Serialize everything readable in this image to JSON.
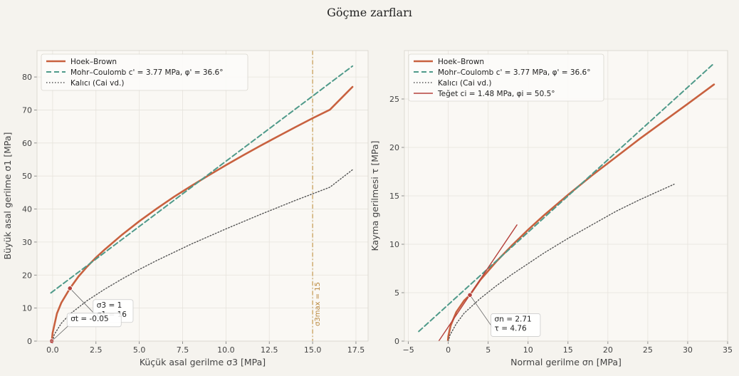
{
  "suptitle": "Göçme zarfları",
  "colors": {
    "hoek_brown": "#c8613f",
    "mohr_coulomb": "#4f9a8a",
    "residual": "#555555",
    "tangent": "#b5413c",
    "vline": "#c09040",
    "plot_bg": "#faf8f4",
    "grid": "#e6e3dc"
  },
  "chart_data": [
    {
      "type": "line",
      "xlabel": "Küçük asal gerilme σ3 [MPa]",
      "ylabel": "Büyük asal gerilme σ1 [MPa]",
      "xlim": [
        -0.9,
        18.2
      ],
      "ylim": [
        0,
        88
      ],
      "xticks": [
        0,
        2.5,
        5,
        7.5,
        10,
        12.5,
        15,
        17.5
      ],
      "xtick_labels": [
        "0.0",
        "2.5",
        "5.0",
        "7.5",
        "10.0",
        "12.5",
        "15.0",
        "17.5"
      ],
      "yticks": [
        0,
        10,
        20,
        30,
        40,
        50,
        60,
        70,
        80
      ],
      "ytick_labels": [
        "0",
        "10",
        "20",
        "30",
        "40",
        "50",
        "60",
        "70",
        "80"
      ],
      "grid": true,
      "legend_loc": "upper left",
      "legend": [
        "Hoek–Brown",
        "Mohr–Coulomb  c' = 3.77 MPa, φ' = 36.6°",
        "Kalıcı (Cai vd.)"
      ],
      "series": [
        {
          "name": "Hoek–Brown",
          "style": "solid",
          "color": "hoek_brown",
          "x": [
            -0.05,
            0,
            0.25,
            0.5,
            1,
            1.5,
            2,
            2.5,
            3,
            4,
            5,
            6,
            7,
            8,
            9,
            10,
            11,
            12,
            13,
            14,
            15,
            16,
            17.3
          ],
          "y": [
            0,
            2.5,
            8.4,
            11.6,
            16,
            19.6,
            22.6,
            25.3,
            27.7,
            32.2,
            36.3,
            40.1,
            43.7,
            47,
            50.2,
            53.3,
            56.3,
            59.2,
            62,
            64.8,
            67.5,
            70.1,
            77
          ]
        },
        {
          "name": "Mohr–Coulomb  c' = 3.77 MPa, φ' = 36.6°",
          "style": "dashed",
          "color": "mohr_coulomb",
          "x": [
            -0.1,
            17.3
          ],
          "y": [
            14.6,
            83.3
          ]
        },
        {
          "name": "Kalıcı (Cai vd.)",
          "style": "dotted",
          "color": "residual",
          "x": [
            0,
            0.1,
            0.5,
            1,
            2,
            3,
            4,
            5,
            6,
            8,
            10,
            12,
            14,
            16,
            17.3
          ],
          "y": [
            0,
            2,
            5.4,
            8.2,
            12.3,
            15.7,
            18.8,
            21.7,
            24.4,
            29.4,
            34,
            38.4,
            42.6,
            46.6,
            51.9
          ]
        }
      ],
      "vline": {
        "x": 15,
        "label": "σ3max = 15",
        "style": "dashdot",
        "color": "vline"
      },
      "points": [
        {
          "x": 1,
          "y": 16,
          "color": "tangent"
        },
        {
          "x": -0.05,
          "y": 0,
          "color": "tangent"
        }
      ],
      "annotations": [
        {
          "lines": [
            "σ3 = 1",
            "σ1 = 16"
          ],
          "anchor_x": 1,
          "anchor_y": 16,
          "text_x": 2.5,
          "text_y": 10.4
        },
        {
          "lines": [
            "σt = -0.05"
          ],
          "anchor_x": -0.05,
          "anchor_y": 0,
          "text_x": 1.0,
          "text_y": 6.3
        }
      ]
    },
    {
      "type": "line",
      "xlabel": "Normal gerilme σn [MPa]",
      "ylabel": "Kayma gerilmesi τ [MPa]",
      "xlim": [
        -5.5,
        35
      ],
      "ylim": [
        0,
        30
      ],
      "xticks": [
        -5,
        0,
        5,
        10,
        15,
        20,
        25,
        30,
        35
      ],
      "xtick_labels": [
        "−5",
        "0",
        "5",
        "10",
        "15",
        "20",
        "25",
        "30",
        "35"
      ],
      "yticks": [
        0,
        5,
        10,
        15,
        20,
        25
      ],
      "ytick_labels": [
        "0",
        "5",
        "10",
        "15",
        "20",
        "25"
      ],
      "grid": true,
      "legend_loc": "upper left",
      "legend": [
        "Hoek–Brown",
        "Mohr–Coulomb  c' = 3.77 MPa, φ' = 36.6°",
        "Kalıcı (Cai vd.)",
        "Teğet  ci = 1.48 MPa, φi = 50.5°"
      ],
      "series": [
        {
          "name": "Hoek–Brown",
          "style": "solid",
          "color": "hoek_brown",
          "x": [
            -0.05,
            0,
            0.3,
            1,
            2,
            2.71,
            4,
            6,
            8,
            10,
            12,
            15,
            18,
            21,
            24,
            27,
            30,
            33.3
          ],
          "y": [
            0,
            0.5,
            1.6,
            3,
            4.2,
            4.76,
            6.3,
            8.2,
            9.9,
            11.5,
            13,
            15.1,
            17.1,
            19,
            20.9,
            22.7,
            24.5,
            26.5
          ]
        },
        {
          "name": "Mohr–Coulomb  c' = 3.77 MPa, φ' = 36.6°",
          "style": "dashed",
          "color": "mohr_coulomb",
          "x": [
            -3.7,
            33.2
          ],
          "y": [
            1,
            28.6
          ]
        },
        {
          "name": "Kalıcı (Cai vd.)",
          "style": "dotted",
          "color": "residual",
          "x": [
            0,
            0.2,
            1,
            2,
            4,
            6,
            8,
            10,
            12,
            15,
            18,
            21,
            24,
            28.3
          ],
          "y": [
            0,
            0.6,
            1.8,
            2.9,
            4.4,
            5.7,
            6.9,
            8,
            9.1,
            10.6,
            12,
            13.4,
            14.6,
            16.2
          ]
        },
        {
          "name": "Teğet  ci = 1.48 MPa, φi = 50.5°",
          "style": "solid",
          "color": "tangent",
          "x": [
            -1.2,
            8.6
          ],
          "y": [
            0,
            12
          ]
        }
      ],
      "points": [
        {
          "x": 2.71,
          "y": 4.76,
          "color": "tangent"
        }
      ],
      "annotations": [
        {
          "lines": [
            "σn = 2.71",
            "τ = 4.76"
          ],
          "anchor_x": 2.71,
          "anchor_y": 4.76,
          "text_x": 5.7,
          "text_y": 2.1
        }
      ]
    }
  ]
}
